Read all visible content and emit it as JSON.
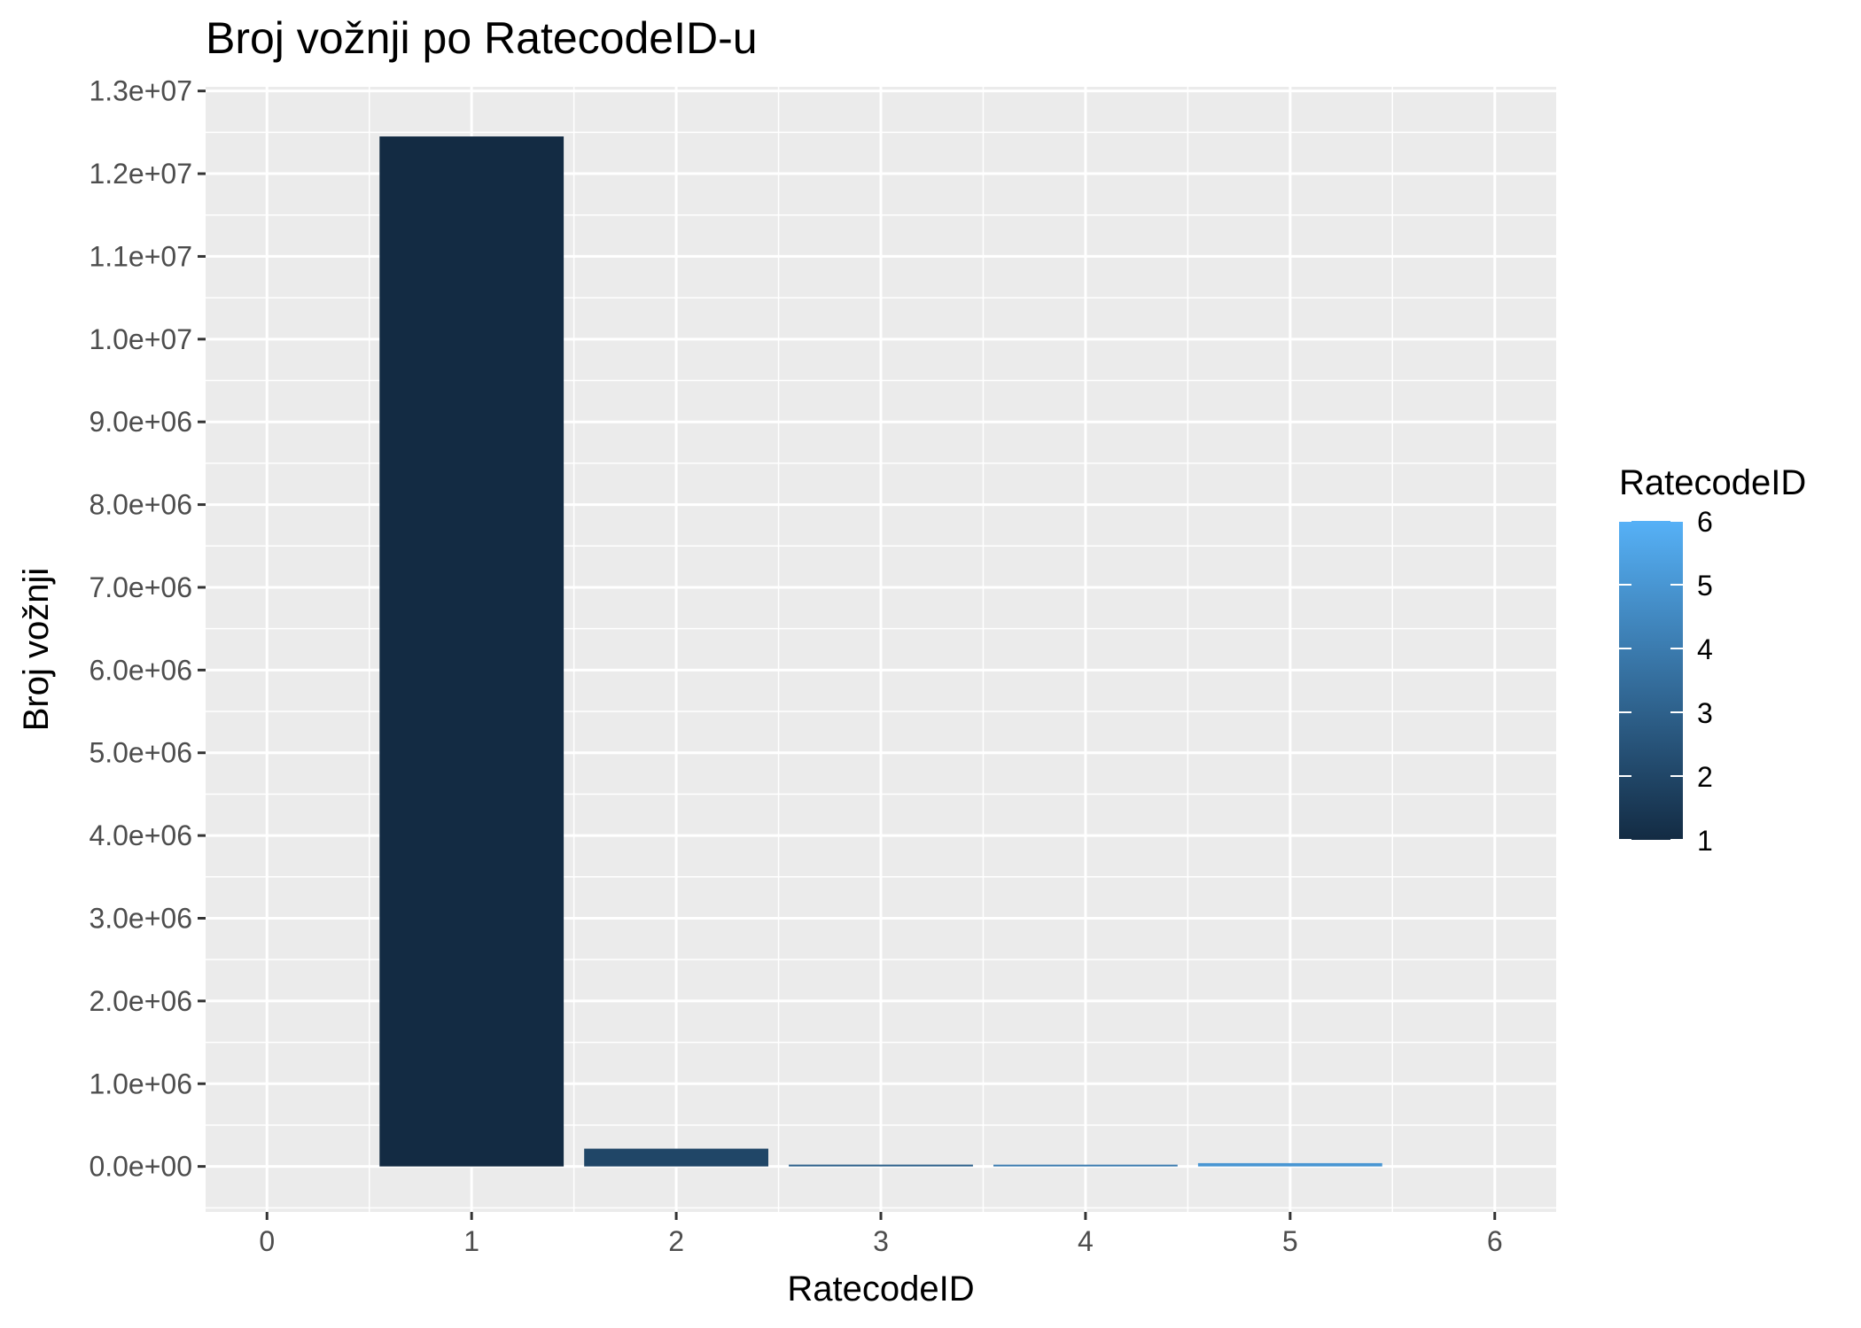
{
  "chart_data": {
    "type": "bar",
    "title": "Broj vožnji po RatecodeID-u",
    "xlabel": "RatecodeID",
    "ylabel": "Broj vožnji",
    "categories": [
      0,
      1,
      2,
      3,
      4,
      5,
      6
    ],
    "values": [
      0,
      12450000,
      215000,
      22000,
      9000,
      40000,
      0
    ],
    "xlim": [
      -0.3,
      6.3
    ],
    "ylim": [
      -550000,
      13050000
    ],
    "x_ticks": [
      "0",
      "1",
      "2",
      "3",
      "4",
      "5",
      "6"
    ],
    "y_ticks": [
      {
        "value": 0,
        "label": "0.0e+00"
      },
      {
        "value": 1000000,
        "label": "1.0e+06"
      },
      {
        "value": 2000000,
        "label": "2.0e+06"
      },
      {
        "value": 3000000,
        "label": "3.0e+06"
      },
      {
        "value": 4000000,
        "label": "4.0e+06"
      },
      {
        "value": 5000000,
        "label": "5.0e+06"
      },
      {
        "value": 6000000,
        "label": "6.0e+06"
      },
      {
        "value": 7000000,
        "label": "7.0e+06"
      },
      {
        "value": 8000000,
        "label": "8.0e+06"
      },
      {
        "value": 9000000,
        "label": "9.0e+06"
      },
      {
        "value": 10000000,
        "label": "1.0e+07"
      },
      {
        "value": 11000000,
        "label": "1.1e+07"
      },
      {
        "value": 12000000,
        "label": "1.2e+07"
      },
      {
        "value": 13000000,
        "label": "1.3e+07"
      }
    ],
    "grid": true,
    "panel_background": "#ebebeb",
    "grid_color": "#ffffff",
    "legend": {
      "title": "RatecodeID",
      "position": "right",
      "min": 1,
      "max": 6,
      "labels": [
        "1",
        "2",
        "3",
        "4",
        "5",
        "6"
      ],
      "color_low": "#132b43",
      "color_high": "#56b1f7"
    }
  }
}
